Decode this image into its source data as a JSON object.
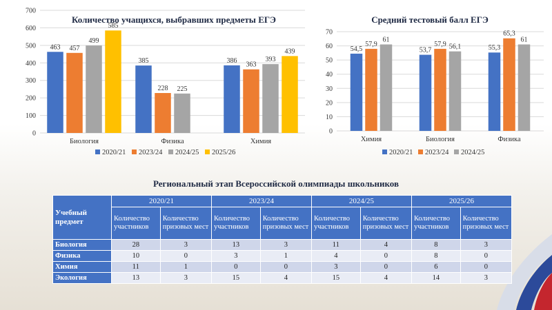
{
  "chart_data": [
    {
      "type": "bar",
      "title": "Количество учащихся, выбравших предметы ЕГЭ",
      "categories": [
        "Биология",
        "Физика",
        "Химия"
      ],
      "series": [
        {
          "name": "2020/21",
          "values": [
            463,
            385,
            386
          ],
          "color": "#4472c4"
        },
        {
          "name": "2023/24",
          "values": [
            457,
            228,
            363
          ],
          "color": "#ed7d31"
        },
        {
          "name": "2024/25",
          "values": [
            499,
            225,
            393
          ],
          "color": "#a5a5a5"
        },
        {
          "name": "2025/26",
          "values": [
            585,
            null,
            439
          ],
          "color": "#ffc000"
        }
      ],
      "ylim": [
        0,
        700
      ],
      "yticks": [
        0,
        100,
        200,
        300,
        400,
        500,
        600,
        700
      ],
      "grid": true,
      "legend": "bottom"
    },
    {
      "type": "bar",
      "title": "Средний тестовый балл ЕГЭ",
      "categories": [
        "Химия",
        "Биология",
        "Физика"
      ],
      "series": [
        {
          "name": "2020/21",
          "values": [
            54.5,
            53.7,
            55.3
          ],
          "labels": [
            "54,5",
            "53,7",
            "55,3"
          ],
          "color": "#4472c4"
        },
        {
          "name": "2023/24",
          "values": [
            57.9,
            57.9,
            65.3
          ],
          "labels": [
            "57,9",
            "57,9",
            "65,3"
          ],
          "color": "#ed7d31"
        },
        {
          "name": "2024/25",
          "values": [
            61,
            56.1,
            61
          ],
          "labels": [
            "61",
            "56,1",
            "61"
          ],
          "color": "#a5a5a5"
        }
      ],
      "ylim": [
        0,
        70
      ],
      "yticks": [
        0,
        10,
        20,
        30,
        40,
        50,
        60,
        70
      ],
      "grid": true,
      "legend": "bottom"
    }
  ],
  "olympiad": {
    "title": "Региональный этап Всероссийской олимпиады школьников",
    "first_header": "Учебный предмет",
    "years": [
      "2020/21",
      "2023/24",
      "2024/25",
      "2025/26"
    ],
    "sub_participants": "Количество участников",
    "sub_winners": "Количество призовых мест",
    "rows": [
      {
        "subject": "Биология",
        "values": [
          "28",
          "3",
          "13",
          "3",
          "11",
          "4",
          "8",
          "3"
        ]
      },
      {
        "subject": "Физика",
        "values": [
          "10",
          "0",
          "3",
          "1",
          "4",
          "0",
          "8",
          "0"
        ]
      },
      {
        "subject": "Химия",
        "values": [
          "11",
          "1",
          "0",
          "0",
          "3",
          "0",
          "6",
          "0"
        ]
      },
      {
        "subject": "Экология",
        "values": [
          "13",
          "3",
          "15",
          "4",
          "15",
          "4",
          "14",
          "3"
        ]
      }
    ]
  }
}
